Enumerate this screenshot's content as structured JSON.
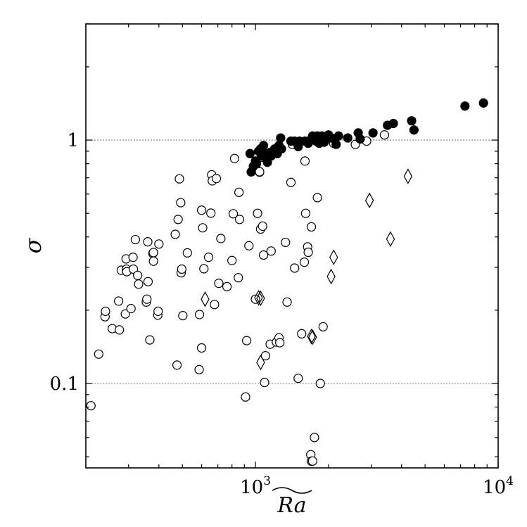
{
  "chart_data": {
    "type": "scatter",
    "title": "",
    "xlabel": "Ra",
    "ylabel": "σ",
    "xscale": "log",
    "yscale": "log",
    "xlim": [
      200,
      10000
    ],
    "ylim": [
      0.045,
      3.0
    ],
    "grid": "horizontal dotted lines at y = 0.1 and y = 1",
    "legend": "none",
    "x_ticks": [
      {
        "value": 1000,
        "base": "10",
        "exp": "3"
      },
      {
        "value": 10000,
        "base": "10",
        "exp": "4"
      }
    ],
    "y_ticks": [
      {
        "value": 0.1,
        "label": "0.1"
      },
      {
        "value": 1,
        "label": "1"
      }
    ],
    "series": [
      {
        "marker": "open-circle",
        "color": "#000000",
        "points": [
          [
            210,
            0.081
          ],
          [
            226,
            0.132
          ],
          [
            240,
            0.188
          ],
          [
            241,
            0.198
          ],
          [
            257,
            0.168
          ],
          [
            273,
            0.218
          ],
          [
            275,
            0.166
          ],
          [
            280,
            0.292
          ],
          [
            291,
            0.193
          ],
          [
            293,
            0.325
          ],
          [
            294,
            0.295
          ],
          [
            295,
            0.288
          ],
          [
            307,
            0.203
          ],
          [
            313,
            0.33
          ],
          [
            314,
            0.295
          ],
          [
            320,
            0.39
          ],
          [
            327,
            0.278
          ],
          [
            330,
            0.256
          ],
          [
            355,
            0.216
          ],
          [
            357,
            0.222
          ],
          [
            360,
            0.382
          ],
          [
            361,
            0.262
          ],
          [
            367,
            0.151
          ],
          [
            378,
            0.342
          ],
          [
            380,
            0.345
          ],
          [
            380,
            0.318
          ],
          [
            396,
            0.191
          ],
          [
            397,
            0.198
          ],
          [
            400,
            0.374
          ],
          [
            475,
            0.119
          ],
          [
            467,
            0.41
          ],
          [
            480,
            0.472
          ],
          [
            486,
            0.693
          ],
          [
            492,
            0.553
          ],
          [
            494,
            0.285
          ],
          [
            497,
            0.295
          ],
          [
            502,
            0.19
          ],
          [
            524,
            0.344
          ],
          [
            586,
            0.114
          ],
          [
            588,
            0.192
          ],
          [
            600,
            0.14
          ],
          [
            600,
            0.515
          ],
          [
            606,
            0.436
          ],
          [
            613,
            0.296
          ],
          [
            641,
            0.33
          ],
          [
            655,
            0.501
          ],
          [
            660,
            0.72
          ],
          [
            664,
            0.68
          ],
          [
            678,
            0.211
          ],
          [
            690,
            0.695
          ],
          [
            706,
            0.258
          ],
          [
            720,
            0.394
          ],
          [
            763,
            0.25
          ],
          [
            800,
            0.32
          ],
          [
            810,
            0.498
          ],
          [
            820,
            0.84
          ],
          [
            850,
            0.272
          ],
          [
            855,
            0.61
          ],
          [
            860,
            0.472
          ],
          [
            910,
            0.088
          ],
          [
            920,
            0.15
          ],
          [
            940,
            0.368
          ],
          [
            1000,
            0.222
          ],
          [
            1020,
            0.5
          ],
          [
            1040,
            0.738
          ],
          [
            1040,
            0.741
          ],
          [
            1050,
            0.431
          ],
          [
            1060,
            0.85
          ],
          [
            1070,
            0.443
          ],
          [
            1080,
            0.337
          ],
          [
            1090,
            0.101
          ],
          [
            1100,
            0.13
          ],
          [
            1150,
            0.145
          ],
          [
            1160,
            0.35
          ],
          [
            1220,
            0.148
          ],
          [
            1250,
            0.154
          ],
          [
            1260,
            0.147
          ],
          [
            1330,
            0.38
          ],
          [
            1350,
            0.216
          ],
          [
            1400,
            0.67
          ],
          [
            1420,
            0.96
          ],
          [
            1450,
            0.298
          ],
          [
            1500,
            0.105
          ],
          [
            1550,
            0.16
          ],
          [
            1590,
            0.315
          ],
          [
            1600,
            0.82
          ],
          [
            1610,
            0.5
          ],
          [
            1640,
            0.364
          ],
          [
            1650,
            0.346
          ],
          [
            1700,
            0.44
          ],
          [
            1690,
            0.051
          ],
          [
            1700,
            0.048
          ],
          [
            1720,
            0.048
          ],
          [
            1750,
            0.06
          ],
          [
            1800,
            0.58
          ],
          [
            1850,
            0.1
          ],
          [
            1900,
            0.171
          ],
          [
            2100,
            0.97
          ],
          [
            2580,
            0.96
          ],
          [
            2870,
            0.99
          ],
          [
            3400,
            1.05
          ]
        ]
      },
      {
        "marker": "filled-circle",
        "color": "#000000",
        "points": [
          [
            950,
            0.88
          ],
          [
            960,
            0.74
          ],
          [
            980,
            0.78
          ],
          [
            1000,
            0.82
          ],
          [
            1010,
            0.8
          ],
          [
            1030,
            0.9
          ],
          [
            1050,
            0.92
          ],
          [
            1060,
            0.86
          ],
          [
            1080,
            0.95
          ],
          [
            1090,
            0.88
          ],
          [
            1100,
            0.86
          ],
          [
            1110,
            0.84
          ],
          [
            1120,
            0.81
          ],
          [
            1130,
            0.86
          ],
          [
            1150,
            0.89
          ],
          [
            1160,
            0.86
          ],
          [
            1180,
            0.9
          ],
          [
            1200,
            0.92
          ],
          [
            1230,
            0.88
          ],
          [
            1250,
            0.95
          ],
          [
            1270,
            1.02
          ],
          [
            1280,
            0.92
          ],
          [
            1400,
            0.99
          ],
          [
            1450,
            0.99
          ],
          [
            1500,
            0.94
          ],
          [
            1520,
            0.99
          ],
          [
            1600,
            0.99
          ],
          [
            1650,
            0.97
          ],
          [
            1700,
            1.01
          ],
          [
            1720,
            1.04
          ],
          [
            1750,
            1.0
          ],
          [
            1780,
            0.99
          ],
          [
            1800,
            1.04
          ],
          [
            1830,
            0.97
          ],
          [
            1880,
            1.04
          ],
          [
            1920,
            0.98
          ],
          [
            2000,
            1.05
          ],
          [
            2050,
            1.02
          ],
          [
            2150,
            0.96
          ],
          [
            2200,
            1.04
          ],
          [
            2400,
            1.02
          ],
          [
            2650,
            1.07
          ],
          [
            2700,
            1.01
          ],
          [
            3050,
            1.07
          ],
          [
            3500,
            1.15
          ],
          [
            3700,
            1.17
          ],
          [
            4400,
            1.2
          ],
          [
            4500,
            1.1
          ],
          [
            7300,
            1.38
          ],
          [
            8700,
            1.42
          ]
        ]
      },
      {
        "marker": "open-diamond",
        "color": "#000000",
        "points": [
          [
            620,
            0.222
          ],
          [
            1030,
            0.225
          ],
          [
            1050,
            0.224
          ],
          [
            1050,
            0.122
          ],
          [
            1700,
            0.156
          ],
          [
            1720,
            0.155
          ],
          [
            2050,
            0.275
          ],
          [
            2100,
            0.33
          ],
          [
            2950,
            0.565
          ],
          [
            3600,
            0.392
          ],
          [
            4250,
            0.71
          ]
        ]
      }
    ]
  }
}
